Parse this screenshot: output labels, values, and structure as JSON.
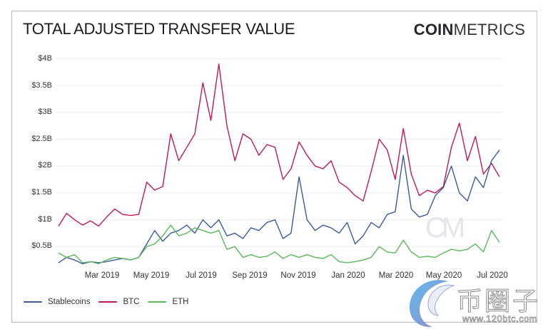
{
  "header": {
    "title": "TOTAL ADJUSTED TRANSFER VALUE",
    "brand_bold": "COIN",
    "brand_light": "METRICS"
  },
  "watermarks": {
    "chart_mark": "CM",
    "site_chars": "币圈子",
    "site_url": "www.120btc.com"
  },
  "colors": {
    "stablecoins": "#3d5a9e",
    "btc": "#c2185b",
    "eth": "#5cb85c",
    "grid": "#eeeeee"
  },
  "chart_data": {
    "type": "line",
    "title": "TOTAL ADJUSTED TRANSFER VALUE",
    "xlabel": "",
    "ylabel": "",
    "ylim": [
      0,
      4000000000
    ],
    "yticks": [
      "$0.5B",
      "$1B",
      "$1.5B",
      "$2B",
      "$2.5B",
      "$3B",
      "$3.5B",
      "$4B"
    ],
    "xticks": [
      "Mar 2019",
      "May 2019",
      "Jul 2019",
      "Sep 2019",
      "Nov 2019",
      "Jan 2020",
      "Mar 2020",
      "May 2020",
      "Jul 2020"
    ],
    "grid": true,
    "legend_position": "bottom-left",
    "x": [
      "2019-01-05",
      "2019-01-15",
      "2019-01-25",
      "2019-02-05",
      "2019-02-15",
      "2019-02-25",
      "2019-03-05",
      "2019-03-15",
      "2019-03-25",
      "2019-04-05",
      "2019-04-15",
      "2019-04-25",
      "2019-05-05",
      "2019-05-15",
      "2019-05-25",
      "2019-06-05",
      "2019-06-15",
      "2019-06-25",
      "2019-07-05",
      "2019-07-15",
      "2019-07-25",
      "2019-08-05",
      "2019-08-15",
      "2019-08-25",
      "2019-09-05",
      "2019-09-15",
      "2019-09-25",
      "2019-10-05",
      "2019-10-15",
      "2019-10-25",
      "2019-11-05",
      "2019-11-15",
      "2019-11-25",
      "2019-12-05",
      "2019-12-15",
      "2019-12-25",
      "2020-01-05",
      "2020-01-15",
      "2020-01-25",
      "2020-02-05",
      "2020-02-15",
      "2020-02-25",
      "2020-03-05",
      "2020-03-15",
      "2020-03-25",
      "2020-04-05",
      "2020-04-15",
      "2020-04-25",
      "2020-05-05",
      "2020-05-15",
      "2020-05-25",
      "2020-06-05",
      "2020-06-15",
      "2020-06-25",
      "2020-07-05",
      "2020-07-12"
    ],
    "series": [
      {
        "name": "BTC",
        "unit": "USD billions",
        "values": [
          0.88,
          1.12,
          1.0,
          0.9,
          0.98,
          0.88,
          1.05,
          1.2,
          1.1,
          1.08,
          1.1,
          1.7,
          1.55,
          1.62,
          2.6,
          2.1,
          2.35,
          2.6,
          3.55,
          2.85,
          3.9,
          2.75,
          2.1,
          2.6,
          2.5,
          2.2,
          2.4,
          2.35,
          1.75,
          1.95,
          2.45,
          2.2,
          2.0,
          1.95,
          2.1,
          1.7,
          1.6,
          1.45,
          1.35,
          1.9,
          2.5,
          2.3,
          1.75,
          2.7,
          1.85,
          1.45,
          1.55,
          1.5,
          1.62,
          2.35,
          2.8,
          2.1,
          2.55,
          1.85,
          2.05,
          1.8
        ]
      },
      {
        "name": "Stablecoins",
        "unit": "USD billions",
        "values": [
          0.2,
          0.3,
          0.25,
          0.18,
          0.22,
          0.2,
          0.22,
          0.25,
          0.28,
          0.25,
          0.3,
          0.55,
          0.8,
          0.6,
          0.75,
          0.8,
          0.9,
          0.75,
          1.0,
          0.85,
          1.0,
          0.7,
          0.75,
          0.65,
          0.85,
          0.8,
          0.95,
          1.0,
          0.65,
          0.75,
          1.8,
          1.0,
          0.8,
          0.9,
          0.85,
          0.75,
          0.95,
          0.55,
          0.7,
          0.95,
          0.85,
          1.1,
          1.15,
          2.2,
          1.2,
          1.05,
          1.1,
          1.45,
          1.6,
          2.0,
          1.5,
          1.35,
          1.8,
          1.6,
          2.1,
          2.3
        ]
      },
      {
        "name": "ETH",
        "unit": "USD billions",
        "values": [
          0.38,
          0.3,
          0.35,
          0.2,
          0.22,
          0.18,
          0.25,
          0.3,
          0.28,
          0.25,
          0.3,
          0.5,
          0.55,
          0.7,
          0.9,
          0.7,
          0.75,
          0.85,
          0.8,
          0.75,
          0.8,
          0.45,
          0.5,
          0.3,
          0.35,
          0.3,
          0.32,
          0.4,
          0.28,
          0.35,
          0.3,
          0.35,
          0.3,
          0.28,
          0.35,
          0.22,
          0.2,
          0.22,
          0.25,
          0.3,
          0.5,
          0.4,
          0.38,
          0.62,
          0.4,
          0.3,
          0.32,
          0.3,
          0.38,
          0.45,
          0.42,
          0.45,
          0.55,
          0.4,
          0.8,
          0.58
        ]
      }
    ]
  },
  "legend": {
    "items": [
      {
        "label": "Stablecoins",
        "color": "#3d5a9e"
      },
      {
        "label": "BTC",
        "color": "#c2185b"
      },
      {
        "label": "ETH",
        "color": "#5cb85c"
      }
    ]
  }
}
